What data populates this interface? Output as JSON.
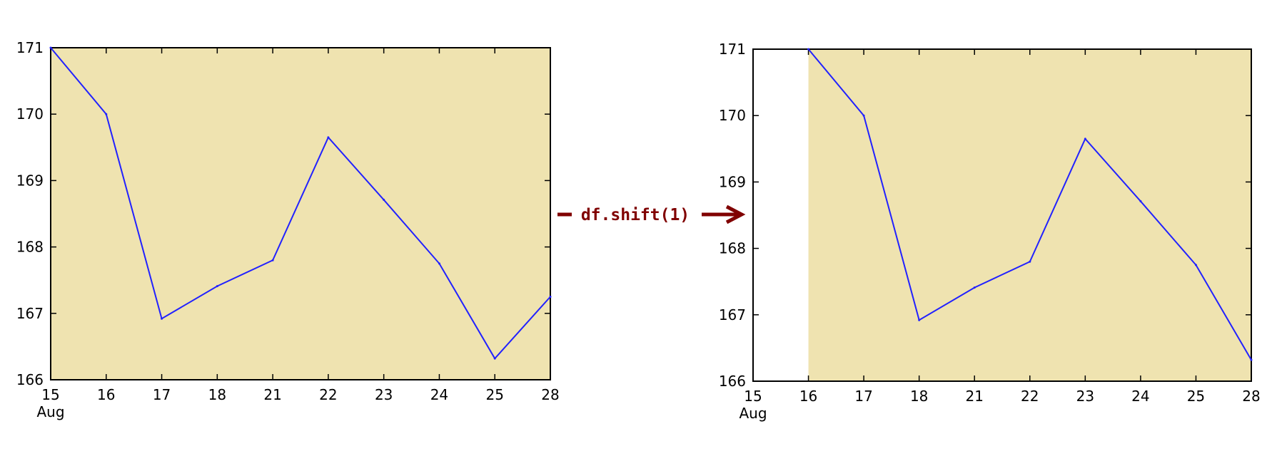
{
  "colors": {
    "plot_background": "#efe3b0",
    "line": "#2121ff",
    "axis": "#000000",
    "arrow": "#800000"
  },
  "arrow": {
    "label": "df.shift(1)"
  },
  "chart_data": [
    {
      "type": "line",
      "title": "",
      "xlabel": "",
      "ylabel": "",
      "categories": [
        "15",
        "16",
        "17",
        "18",
        "21",
        "22",
        "23",
        "24",
        "25",
        "28"
      ],
      "month_label": "Aug",
      "ylim": [
        166,
        171
      ],
      "yticks": [
        "166",
        "167",
        "168",
        "169",
        "170",
        "171"
      ],
      "grid": false,
      "series": [
        {
          "values": [
            171.0,
            170.0,
            166.92,
            167.41,
            167.8,
            169.65,
            168.71,
            167.75,
            166.32,
            167.25
          ]
        }
      ]
    },
    {
      "type": "line",
      "title": "",
      "xlabel": "",
      "ylabel": "",
      "categories": [
        "15",
        "16",
        "17",
        "18",
        "21",
        "22",
        "23",
        "24",
        "25",
        "28"
      ],
      "month_label": "Aug",
      "ylim": [
        166,
        171
      ],
      "yticks": [
        "166",
        "167",
        "168",
        "169",
        "170",
        "171"
      ],
      "grid": false,
      "series": [
        {
          "values": [
            null,
            171.0,
            170.0,
            166.92,
            167.41,
            167.8,
            169.65,
            168.71,
            167.75,
            166.32
          ]
        }
      ]
    }
  ]
}
